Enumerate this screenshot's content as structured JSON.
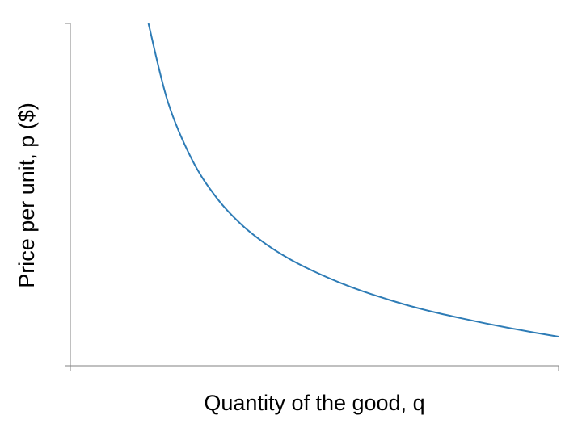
{
  "chart_data": {
    "type": "line",
    "title": "",
    "xlabel": "Quantity of the good, q",
    "ylabel": "Price per unit, p ($)",
    "xlim": [
      0,
      1
    ],
    "ylim": [
      0,
      1
    ],
    "grid": false,
    "legend": "none",
    "series": [
      {
        "color": "#2e7cb6",
        "x": [
          0.16,
          0.2,
          0.25,
          0.3,
          0.35,
          0.4,
          0.45,
          0.5,
          0.55,
          0.6,
          0.65,
          0.7,
          0.75,
          0.8,
          0.85,
          0.9,
          0.95,
          1.0
        ],
        "y": [
          1.0,
          0.77,
          0.6,
          0.49,
          0.413,
          0.356,
          0.311,
          0.275,
          0.244,
          0.217,
          0.194,
          0.173,
          0.155,
          0.139,
          0.124,
          0.11,
          0.097,
          0.085
        ]
      }
    ]
  }
}
